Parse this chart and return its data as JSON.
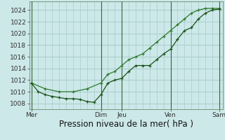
{
  "background_color": "#cce8e8",
  "grid_color": "#aacccc",
  "plot_bg_color": "#cce8e8",
  "line_color_dark": "#1a5218",
  "line_color_light": "#2d7a2d",
  "ylim": [
    1007,
    1025.5
  ],
  "yticks": [
    1008,
    1010,
    1012,
    1014,
    1016,
    1018,
    1020,
    1022,
    1024
  ],
  "xlabel": "Pression niveau de la mer( hPa )",
  "xlabel_fontsize": 8.5,
  "tick_fontsize": 6.5,
  "day_labels": [
    "Mer",
    "Dim",
    "Jeu",
    "Ven",
    "Sam"
  ],
  "day_positions": [
    0,
    10,
    13,
    20,
    27
  ],
  "xlim": [
    -0.3,
    27.5
  ],
  "series_detailed_x": [
    0,
    1,
    2,
    3,
    4,
    5,
    6,
    7,
    8,
    9,
    10,
    11,
    12,
    13,
    14,
    15,
    16,
    17,
    18,
    19,
    20,
    21,
    22,
    23,
    24,
    25,
    26,
    27
  ],
  "series_detailed_y": [
    1011.5,
    1010.0,
    1009.5,
    1009.2,
    1009.0,
    1008.8,
    1008.8,
    1008.7,
    1008.3,
    1008.2,
    1009.5,
    1011.5,
    1012.0,
    1012.3,
    1013.5,
    1014.5,
    1014.5,
    1014.5,
    1015.5,
    1016.5,
    1017.3,
    1019.0,
    1020.5,
    1021.0,
    1022.5,
    1023.5,
    1024.0,
    1024.2
  ],
  "series_smooth_x": [
    0,
    2,
    4,
    6,
    8,
    10,
    11,
    12,
    13,
    14,
    15,
    16,
    17,
    18,
    19,
    20,
    21,
    22,
    23,
    24,
    25,
    26,
    27
  ],
  "series_smooth_y": [
    1011.5,
    1010.5,
    1010.0,
    1010.0,
    1010.5,
    1011.5,
    1013.0,
    1013.5,
    1014.5,
    1015.5,
    1016.0,
    1016.5,
    1017.5,
    1018.5,
    1019.5,
    1020.5,
    1021.5,
    1022.5,
    1023.5,
    1024.0,
    1024.3,
    1024.3,
    1024.3
  ],
  "vline_positions": [
    0,
    10,
    13,
    20,
    27
  ],
  "vline_color": "#336633",
  "minor_x_step": 1
}
